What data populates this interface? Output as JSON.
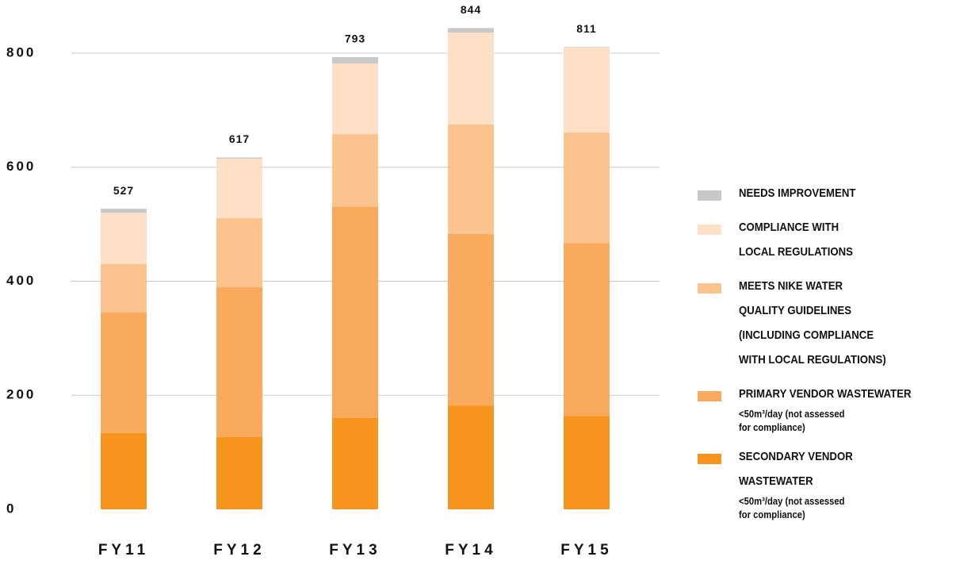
{
  "chart_data": {
    "type": "stacked_bar",
    "categories": [
      "FY11",
      "FY12",
      "FY13",
      "FY14",
      "FY15"
    ],
    "series": [
      {
        "name": "SECONDARY VENDOR WASTEWATER",
        "note": "<50m³/day (not assessed\nfor compliance)",
        "color": "#f7941d",
        "values": [
          134,
          127,
          160,
          182,
          164
        ]
      },
      {
        "name": "PRIMARY VENDOR WASTEWATER",
        "note": "<50m³/day (not assessed\nfor compliance)",
        "color": "#f9aa5c",
        "values": [
          211,
          263,
          371,
          301,
          303
        ]
      },
      {
        "name": "MEETS NIKE WATER\nQUALITY GUIDELINES\n(INCLUDING COMPLIANCE\nWITH LOCAL REGULATIONS)",
        "color": "#fbc48e",
        "values": [
          85,
          121,
          127,
          192,
          194
        ]
      },
      {
        "name": "COMPLIANCE WITH\nLOCAL REGULATIONS",
        "color": "#fde0c5",
        "values": [
          90,
          104,
          124,
          161,
          149
        ]
      },
      {
        "name": "NEEDS IMPROVEMENT",
        "color": "#c8c8c8",
        "values": [
          7,
          2,
          11,
          8,
          1
        ]
      }
    ],
    "totals": [
      527,
      617,
      793,
      844,
      811
    ],
    "ylim": [
      0,
      880
    ],
    "yticks": [
      0,
      200,
      400,
      600,
      800
    ],
    "grid": true
  }
}
